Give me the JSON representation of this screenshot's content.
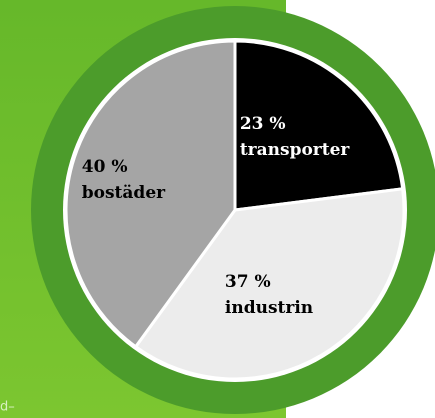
{
  "chart_data": {
    "type": "pie",
    "categories": [
      "transporter",
      "industrin",
      "bostäder"
    ],
    "values": [
      23,
      37,
      40
    ],
    "value_labels": [
      "23 %",
      "37 %",
      "40 %"
    ],
    "colors": [
      "#000000",
      "#ececec",
      "#a5a5a5"
    ],
    "label_colors": [
      "#ffffff",
      "#000000",
      "#000000"
    ],
    "annotation": "d–"
  }
}
